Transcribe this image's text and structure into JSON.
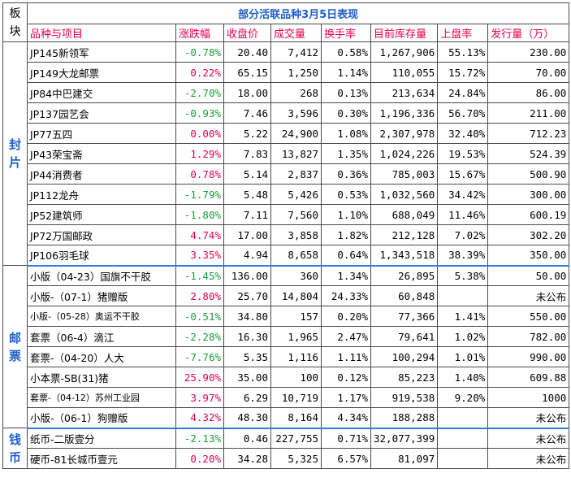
{
  "title": "部分活联品种3月5日表现",
  "corner": "板块",
  "headers": [
    "品种与项目",
    "涨跌幅",
    "收盘价",
    "成交量",
    "换手率",
    "目前库存量",
    "上盘率",
    "发行量（万）"
  ],
  "sections": [
    {
      "label": "封片",
      "rows": [
        {
          "name": "JP145新领军",
          "change": "-0.78%",
          "dir": "neg",
          "close": "20.40",
          "volume": "7,412",
          "turnover": "0.58%",
          "stock": "1,267,906",
          "listing": "55.13%",
          "issue": "230.00"
        },
        {
          "name": "JP149大龙邮票",
          "change": "0.22%",
          "dir": "pos",
          "close": "65.15",
          "volume": "1,250",
          "turnover": "1.14%",
          "stock": "110,055",
          "listing": "15.72%",
          "issue": "70.00"
        },
        {
          "name": "JP84中巴建交",
          "change": "-2.70%",
          "dir": "neg",
          "close": "18.00",
          "volume": "268",
          "turnover": "0.13%",
          "stock": "213,634",
          "listing": "24.84%",
          "issue": "86.00"
        },
        {
          "name": "JP137园艺会",
          "change": "-0.93%",
          "dir": "neg",
          "close": "7.46",
          "volume": "3,596",
          "turnover": "0.30%",
          "stock": "1,196,336",
          "listing": "56.70%",
          "issue": "211.00"
        },
        {
          "name": "JP77五四",
          "change": "0.00%",
          "dir": "pos",
          "close": "5.22",
          "volume": "24,900",
          "turnover": "1.08%",
          "stock": "2,307,978",
          "listing": "32.40%",
          "issue": "712.23"
        },
        {
          "name": "JP43荣宝斋",
          "change": "1.29%",
          "dir": "pos",
          "close": "7.83",
          "volume": "13,827",
          "turnover": "1.35%",
          "stock": "1,024,226",
          "listing": "19.53%",
          "issue": "524.39"
        },
        {
          "name": "JP44消费者",
          "change": "0.78%",
          "dir": "pos",
          "close": "5.14",
          "volume": "2,837",
          "turnover": "0.36%",
          "stock": "785,003",
          "listing": "15.67%",
          "issue": "500.90"
        },
        {
          "name": "JP112龙舟",
          "change": "-1.79%",
          "dir": "neg",
          "close": "5.48",
          "volume": "5,426",
          "turnover": "0.53%",
          "stock": "1,032,560",
          "listing": "34.42%",
          "issue": "300.00"
        },
        {
          "name": "JP52建筑师",
          "change": "-1.80%",
          "dir": "neg",
          "close": "7.11",
          "volume": "7,560",
          "turnover": "1.10%",
          "stock": "688,049",
          "listing": "11.46%",
          "issue": "600.19"
        },
        {
          "name": "JP72万国邮政",
          "change": "4.74%",
          "dir": "pos",
          "close": "17.00",
          "volume": "3,858",
          "turnover": "1.82%",
          "stock": "212,128",
          "listing": "7.02%",
          "issue": "302.20"
        },
        {
          "name": "JP106羽毛球",
          "change": "3.35%",
          "dir": "pos",
          "close": "4.94",
          "volume": "8,658",
          "turnover": "0.64%",
          "stock": "1,343,518",
          "listing": "38.39%",
          "issue": "350.00"
        }
      ]
    },
    {
      "label": "邮票",
      "rows": [
        {
          "name": "小版（04-23）国旗不干胶",
          "change": "-1.45%",
          "dir": "neg",
          "close": "136.00",
          "volume": "360",
          "turnover": "1.34%",
          "stock": "26,895",
          "listing": "5.38%",
          "issue": "50.00"
        },
        {
          "name": "小版-（07-1）猪赠版",
          "change": "2.80%",
          "dir": "pos",
          "close": "25.70",
          "volume": "14,804",
          "turnover": "24.33%",
          "stock": "60,848",
          "listing": "",
          "issue": "未公布"
        },
        {
          "name": "小版-（05-28）奥运不干胶",
          "change": "-0.51%",
          "dir": "neg",
          "close": "34.80",
          "volume": "157",
          "turnover": "0.20%",
          "stock": "77,366",
          "listing": "1.41%",
          "issue": "550.00",
          "small": true
        },
        {
          "name": "套票（06-4）滴江",
          "change": "-2.28%",
          "dir": "neg",
          "close": "16.30",
          "volume": "1,965",
          "turnover": "2.47%",
          "stock": "79,641",
          "listing": "1.02%",
          "issue": "782.00"
        },
        {
          "name": "套票-（04-20）人大",
          "change": "-7.76%",
          "dir": "neg",
          "close": "5.35",
          "volume": "1,116",
          "turnover": "1.11%",
          "stock": "100,294",
          "listing": "1.01%",
          "issue": "990.00"
        },
        {
          "name": "小本票-SB(31)猪",
          "change": "25.90%",
          "dir": "pos",
          "close": "35.00",
          "volume": "100",
          "turnover": "0.12%",
          "stock": "85,223",
          "listing": "1.40%",
          "issue": "609.88"
        },
        {
          "name": "套票-（04-12）苏州工业园",
          "change": "3.97%",
          "dir": "pos",
          "close": "6.29",
          "volume": "10,719",
          "turnover": "1.17%",
          "stock": "919,538",
          "listing": "9.20%",
          "issue": "1000",
          "small": true
        },
        {
          "name": "小版-（06-1）狗赠版",
          "change": "4.32%",
          "dir": "pos",
          "close": "48.30",
          "volume": "8,164",
          "turnover": "4.34%",
          "stock": "188,288",
          "listing": "",
          "issue": "未公布"
        }
      ]
    },
    {
      "label": "钱币",
      "rows": [
        {
          "name": "纸币-二版壹分",
          "change": "-2.13%",
          "dir": "neg",
          "close": "0.46",
          "volume": "227,755",
          "turnover": "0.71%",
          "stock": "32,077,399",
          "listing": "",
          "issue": "未公布"
        },
        {
          "name": "硬币-81长城币壹元",
          "change": "0.20%",
          "dir": "pos",
          "close": "34.28",
          "volume": "5,325",
          "turnover": "6.57%",
          "stock": "81,097",
          "listing": "",
          "issue": "未公布"
        }
      ]
    }
  ]
}
